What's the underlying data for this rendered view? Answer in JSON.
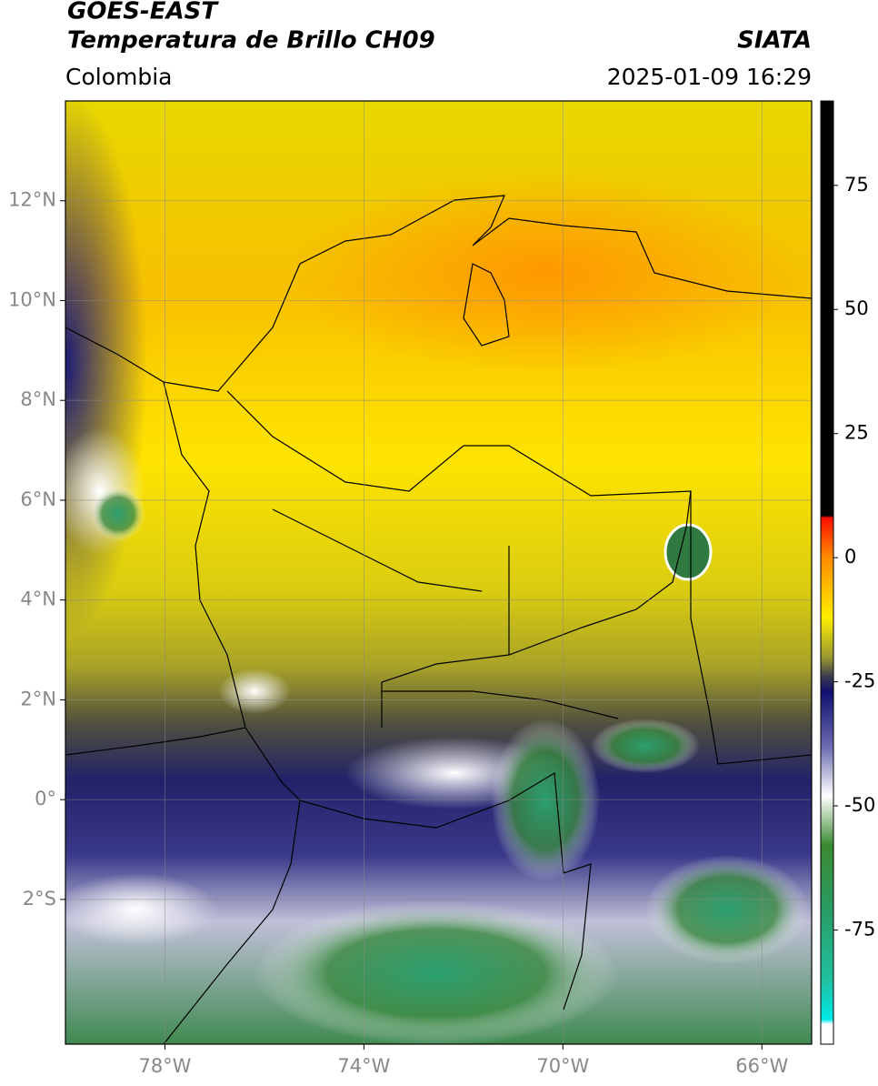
{
  "chart_data": {
    "type": "map",
    "title": "GOES-EAST",
    "subtitle": "Temperatura de Brillo CH09",
    "source": "SIATA",
    "region": "Colombia",
    "timestamp": "2025-01-09 16:29",
    "xlim": [
      -80,
      -65
    ],
    "ylim": [
      -4.9,
      14
    ],
    "xticks": [
      {
        "value": -78,
        "label": "78°W"
      },
      {
        "value": -74,
        "label": "74°W"
      },
      {
        "value": -70,
        "label": "70°W"
      },
      {
        "value": -66,
        "label": "66°W"
      }
    ],
    "yticks": [
      {
        "value": 12,
        "label": "12°N"
      },
      {
        "value": 10,
        "label": "10°N"
      },
      {
        "value": 8,
        "label": "8°N"
      },
      {
        "value": 6,
        "label": "6°N"
      },
      {
        "value": 4,
        "label": "4°N"
      },
      {
        "value": 2,
        "label": "2°N"
      },
      {
        "value": 0,
        "label": "0°"
      },
      {
        "value": -2,
        "label": "2°S"
      }
    ],
    "grid": true,
    "colorbar": {
      "lim": [
        -98,
        92
      ],
      "ticks": [
        75,
        50,
        25,
        0,
        -25,
        -50,
        -75
      ],
      "stops": [
        {
          "value": 92,
          "color": "#000000"
        },
        {
          "value": 8.5,
          "color": "#000000"
        },
        {
          "value": 8,
          "color": "#ff1000"
        },
        {
          "value": 0,
          "color": "#ff8c00"
        },
        {
          "value": -12,
          "color": "#ffee00"
        },
        {
          "value": -20,
          "color": "#9a9a30"
        },
        {
          "value": -24,
          "color": "#3a3a50"
        },
        {
          "value": -27,
          "color": "#101070"
        },
        {
          "value": -38,
          "color": "#6a6ab0"
        },
        {
          "value": -48,
          "color": "#ffffff"
        },
        {
          "value": -58,
          "color": "#3a8a30"
        },
        {
          "value": -70,
          "color": "#2a9a60"
        },
        {
          "value": -85,
          "color": "#20c0a0"
        },
        {
          "value": -93,
          "color": "#00e8e8"
        },
        {
          "value": -94,
          "color": "#ffffff"
        },
        {
          "value": -98,
          "color": "#ffffff"
        }
      ]
    }
  }
}
